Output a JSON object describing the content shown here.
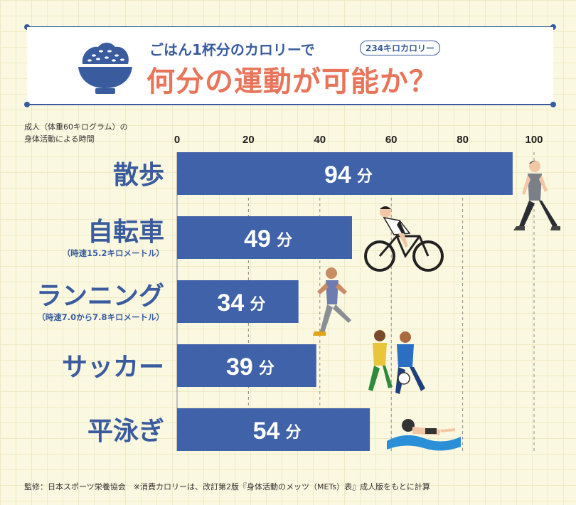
{
  "header": {
    "title_line1": "ごはん1杯分のカロリーで",
    "calorie_badge": "234キロカロリー",
    "title_line2": "何分の運動が可能か？"
  },
  "axis_note": {
    "line1": "成人（体重60キログラム）の",
    "line2": "身体活動による時間"
  },
  "unit": "分",
  "footer": "監修：日本スポーツ栄養協会　※消費カロリーは、改訂第2版『身体活動のメッツ（METs）表』成人版をもとに計算",
  "colors": {
    "accent": "#3a5c9e",
    "bar": "#3f62a8",
    "title_red": "#e8755a",
    "background": "#fbf8e1"
  },
  "chart_data": {
    "type": "bar",
    "orientation": "horizontal",
    "categories": [
      "散歩",
      "自転車",
      "ランニング",
      "サッカー",
      "平泳ぎ"
    ],
    "category_notes": [
      "",
      "（時速15.2キロメートル）",
      "（時速7.0から7.8キロメートル）",
      "",
      ""
    ],
    "values": [
      94,
      49,
      34,
      39,
      54
    ],
    "data_labels": [
      "94",
      "49",
      "34",
      "39",
      "54"
    ],
    "xlim": [
      0,
      100
    ],
    "xticks": [
      0,
      20,
      40,
      60,
      80,
      100
    ],
    "grid": true,
    "title": "",
    "xlabel": "",
    "ylabel": ""
  }
}
